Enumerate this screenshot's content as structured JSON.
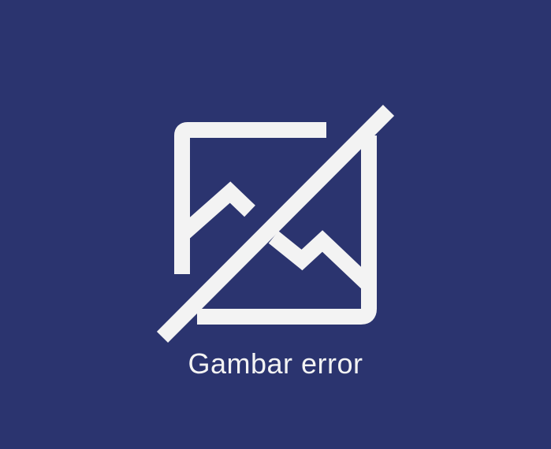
{
  "error": {
    "icon": "broken-image-icon",
    "message": "Gambar error"
  },
  "colors": {
    "background": "#2b346f",
    "foreground": "#f3f3f3"
  }
}
